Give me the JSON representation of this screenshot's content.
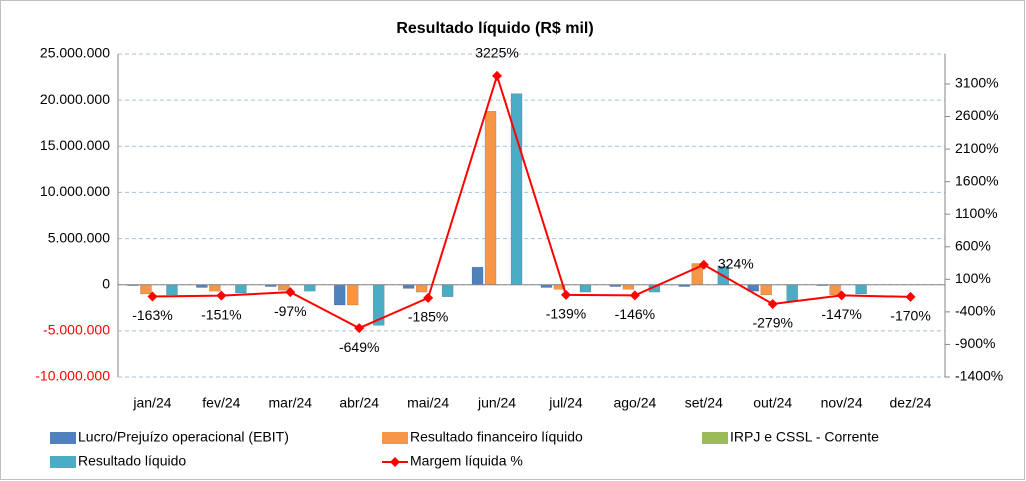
{
  "chart_data": {
    "type": "bar",
    "title": "Resultado líquido (R$ mil)",
    "categories": [
      "jan/24",
      "fev/24",
      "mar/24",
      "abr/24",
      "mai/24",
      "jun/24",
      "jul/24",
      "ago/24",
      "set/24",
      "out/24",
      "nov/24",
      "dez/24"
    ],
    "series": [
      {
        "name": "Lucro/Prejuízo operacional (EBIT)",
        "color": "#4f81bd",
        "values": [
          -100000,
          -300000,
          -200000,
          -2200000,
          -400000,
          1900000,
          -300000,
          -200000,
          -200000,
          -700000,
          -100000,
          0
        ]
      },
      {
        "name": "Resultado financeiro líquido",
        "color": "#f79646",
        "values": [
          -1000000,
          -700000,
          -600000,
          -2200000,
          -800000,
          18800000,
          -500000,
          -500000,
          2300000,
          -1100000,
          -1100000,
          0
        ]
      },
      {
        "name": "IRPJ e CSSL - Corrente",
        "color": "#9bbb59",
        "values": [
          0,
          0,
          0,
          0,
          0,
          0,
          0,
          0,
          0,
          0,
          0,
          0
        ]
      },
      {
        "name": "Resultado líquido",
        "color": "#4bacc6",
        "values": [
          -1100000,
          -900000,
          -700000,
          -4400000,
          -1300000,
          20700000,
          -800000,
          -800000,
          2000000,
          -1800000,
          -1000000,
          0
        ]
      },
      {
        "name": "Margem líquida %",
        "color": "#ff0000",
        "type": "line",
        "axis": "y2",
        "values": [
          -163,
          -151,
          -97,
          -649,
          -185,
          3225,
          -139,
          -146,
          324,
          -279,
          -147,
          -170
        ],
        "value_labels": [
          "-163%",
          "-151%",
          "-97%",
          "-649%",
          "-185%",
          "3225%",
          "-139%",
          "-146%",
          "324%",
          "-279%",
          "-147%",
          "-170%"
        ]
      }
    ],
    "ylim": [
      -10000000,
      25000000
    ],
    "yticks": [
      {
        "value": -10000000,
        "label": "-10.000.000"
      },
      {
        "value": -5000000,
        "label": "-5.000.000"
      },
      0,
      {
        "value": 5000000,
        "label": "5.000.000"
      },
      {
        "value": 10000000,
        "label": "10.000.000"
      },
      {
        "value": 15000000,
        "label": "15.000.000"
      },
      {
        "value": 20000000,
        "label": "20.000.000"
      },
      {
        "value": 25000000,
        "label": "25.000.000"
      }
    ],
    "y2lim": [
      -1400,
      3560
    ],
    "y2ticks": [
      {
        "value": -1400,
        "label": "-1400%"
      },
      {
        "value": -900,
        "label": "-900%"
      },
      {
        "value": -400,
        "label": "-400%"
      },
      {
        "value": 100,
        "label": "100%"
      },
      {
        "value": 600,
        "label": "600%"
      },
      {
        "value": 1100,
        "label": "1100%"
      },
      {
        "value": 1600,
        "label": "1600%"
      },
      {
        "value": 2100,
        "label": "2100%"
      },
      {
        "value": 2600,
        "label": "2600%"
      },
      {
        "value": 3100,
        "label": "3100%"
      }
    ],
    "negative_tick_color": "#ff0000",
    "grid": true,
    "legend": "bottom"
  }
}
